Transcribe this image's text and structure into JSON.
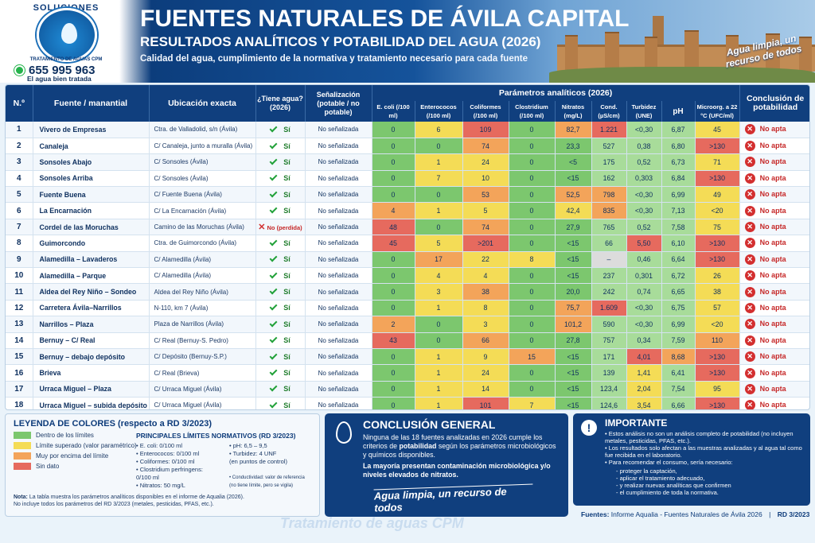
{
  "brand": {
    "logo_top": "SOLUCIONES",
    "logo_bottom": "TRATAMIENTO DE AGUAS CPM",
    "phone": "655 995 963",
    "tagline": "El agua bien tratada"
  },
  "header": {
    "title": "FUENTES NATURALES DE ÁVILA CAPITAL",
    "subtitle": "RESULTADOS ANALÍTICOS Y POTABILIDAD DEL AGUA (2026)",
    "description": "Calidad del agua, cumplimiento de la normativa y tratamiento necesario para cada fuente",
    "motto": "Agua limpia, un recurso de todos"
  },
  "columns": {
    "num": "N.º",
    "fuente": "Fuente / manantial",
    "ubicacion": "Ubicación exacta",
    "agua": "¿Tiene agua? (2026)",
    "senal": "Señalización (potable / no potable)",
    "params_group": "Parámetros analíticos (2026)",
    "ecoli": "E. coli (/100 ml)",
    "entero": "Enterococos (/100 ml)",
    "coli": "Coliformes (/100 ml)",
    "clost": "Clostridium (/100 ml)",
    "nitra": "Nitratos (mg/L)",
    "cond": "Cond. (µS/cm)",
    "turb": "Turbidez (UNE)",
    "ph": "pH",
    "micro": "Microorg. a 22 °C (UFC/ml)",
    "concl": "Conclusión de potabilidad"
  },
  "rows": [
    {
      "n": "1",
      "name": "Vivero de Empresas",
      "loc": "Ctra. de Valladolid, s/n (Ávila)",
      "agua": "Sí",
      "agua_ok": true,
      "sen": "No señalizada",
      "ecoli": "0",
      "entero": "6",
      "coli": "109",
      "clost": "0",
      "nitra": "82,7",
      "cond": "1.221",
      "turb": "<0,30",
      "ph": "6,87",
      "micro": "45",
      "concl": "No apta"
    },
    {
      "n": "2",
      "name": "Canaleja",
      "loc": "C/ Canaleja, junto a muralla (Ávila)",
      "agua": "Sí",
      "agua_ok": true,
      "sen": "No señalizada",
      "ecoli": "0",
      "entero": "0",
      "coli": "74",
      "clost": "0",
      "nitra": "23,3",
      "cond": "527",
      "turb": "0,38",
      "ph": "6,80",
      "micro": ">130",
      "concl": "No apta"
    },
    {
      "n": "3",
      "name": "Sonsoles Abajo",
      "loc": "C/ Sonsoles (Ávila)",
      "agua": "Sí",
      "agua_ok": true,
      "sen": "No señalizada",
      "ecoli": "0",
      "entero": "1",
      "coli": "24",
      "clost": "0",
      "nitra": "<5",
      "cond": "175",
      "turb": "0,52",
      "ph": "6,73",
      "micro": "71",
      "concl": "No apta"
    },
    {
      "n": "4",
      "name": "Sonsoles Arriba",
      "loc": "C/ Sonsoles (Ávila)",
      "agua": "Sí",
      "agua_ok": true,
      "sen": "No señalizada",
      "ecoli": "0",
      "entero": "7",
      "coli": "10",
      "clost": "0",
      "nitra": "<15",
      "cond": "162",
      "turb": "0,303",
      "ph": "6,84",
      "micro": ">130",
      "concl": "No apta"
    },
    {
      "n": "5",
      "name": "Fuente Buena",
      "loc": "C/ Fuente Buena (Ávila)",
      "agua": "Sí",
      "agua_ok": true,
      "sen": "No señalizada",
      "ecoli": "0",
      "entero": "0",
      "coli": "53",
      "clost": "0",
      "nitra": "52,5",
      "cond": "798",
      "turb": "<0,30",
      "ph": "6,99",
      "micro": "49",
      "concl": "No apta"
    },
    {
      "n": "6",
      "name": "La Encarnación",
      "loc": "C/ La Encarnación (Ávila)",
      "agua": "Sí",
      "agua_ok": true,
      "sen": "No señalizada",
      "ecoli": "4",
      "entero": "1",
      "coli": "5",
      "clost": "0",
      "nitra": "42,4",
      "cond": "835",
      "turb": "<0,30",
      "ph": "7,13",
      "micro": "<20",
      "concl": "No apta"
    },
    {
      "n": "7",
      "name": "Cordel de las Moruchas",
      "loc": "Camino de las Moruchas (Ávila)",
      "agua": "No (perdida)",
      "agua_ok": false,
      "sen": "No señalizada",
      "ecoli": "48",
      "entero": "0",
      "coli": "74",
      "clost": "0",
      "nitra": "27,9",
      "cond": "765",
      "turb": "0,52",
      "ph": "7,58",
      "micro": "75",
      "concl": "No apta"
    },
    {
      "n": "8",
      "name": "Guimorcondo",
      "loc": "Ctra. de Guimorcondo (Ávila)",
      "agua": "Sí",
      "agua_ok": true,
      "sen": "No señalizada",
      "ecoli": "45",
      "entero": "5",
      "coli": ">201",
      "clost": "0",
      "nitra": "<15",
      "cond": "66",
      "turb": "5,50",
      "ph": "6,10",
      "micro": ">130",
      "concl": "No apta"
    },
    {
      "n": "9",
      "name": "Alamedilla – Lavaderos",
      "loc": "C/ Alamedilla (Ávila)",
      "agua": "Sí",
      "agua_ok": true,
      "sen": "No señalizada",
      "ecoli": "0",
      "entero": "17",
      "coli": "22",
      "clost": "8",
      "nitra": "<15",
      "cond": "–",
      "turb": "0,46",
      "ph": "6,64",
      "micro": ">130",
      "concl": "No apta"
    },
    {
      "n": "10",
      "name": "Alamedilla – Parque",
      "loc": "C/ Alamedilla (Ávila)",
      "agua": "Sí",
      "agua_ok": true,
      "sen": "No señalizada",
      "ecoli": "0",
      "entero": "4",
      "coli": "4",
      "clost": "0",
      "nitra": "<15",
      "cond": "237",
      "turb": "0,301",
      "ph": "6,72",
      "micro": "26",
      "concl": "No apta"
    },
    {
      "n": "11",
      "name": "Aldea del Rey Niño – Sondeo",
      "loc": "Aldea del Rey Niño (Ávila)",
      "agua": "Sí",
      "agua_ok": true,
      "sen": "No señalizada",
      "ecoli": "0",
      "entero": "3",
      "coli": "38",
      "clost": "0",
      "nitra": "20,0",
      "cond": "242",
      "turb": "0,74",
      "ph": "6,65",
      "micro": "38",
      "concl": "No apta"
    },
    {
      "n": "12",
      "name": "Carretera Ávila–Narrillos",
      "loc": "N-110, km 7 (Ávila)",
      "agua": "Sí",
      "agua_ok": true,
      "sen": "No señalizada",
      "ecoli": "0",
      "entero": "1",
      "coli": "8",
      "clost": "0",
      "nitra": "75,7",
      "cond": "1.609",
      "turb": "<0,30",
      "ph": "6,75",
      "micro": "57",
      "concl": "No apta"
    },
    {
      "n": "13",
      "name": "Narrillos – Plaza",
      "loc": "Plaza de Narrillos (Ávila)",
      "agua": "Sí",
      "agua_ok": true,
      "sen": "No señalizada",
      "ecoli": "2",
      "entero": "0",
      "coli": "3",
      "clost": "0",
      "nitra": "101,2",
      "cond": "590",
      "turb": "<0,30",
      "ph": "6,99",
      "micro": "<20",
      "concl": "No apta"
    },
    {
      "n": "14",
      "name": "Bernuy – C/ Real",
      "loc": "C/ Real (Bernuy-S. Pedro)",
      "agua": "Sí",
      "agua_ok": true,
      "sen": "No señalizada",
      "ecoli": "43",
      "entero": "0",
      "coli": "66",
      "clost": "0",
      "nitra": "27,8",
      "cond": "757",
      "turb": "0,34",
      "ph": "7,59",
      "micro": "110",
      "concl": "No apta"
    },
    {
      "n": "15",
      "name": "Bernuy – debajo depósito",
      "loc": "C/ Depósito (Bernuy-S.P.)",
      "agua": "Sí",
      "agua_ok": true,
      "sen": "No señalizada",
      "ecoli": "0",
      "entero": "1",
      "coli": "9",
      "clost": "15",
      "nitra": "<15",
      "cond": "171",
      "turb": "4,01",
      "ph": "8,68",
      "micro": ">130",
      "concl": "No apta"
    },
    {
      "n": "16",
      "name": "Brieva",
      "loc": "C/ Real (Brieva)",
      "agua": "Sí",
      "agua_ok": true,
      "sen": "No señalizada",
      "ecoli": "0",
      "entero": "1",
      "coli": "24",
      "clost": "0",
      "nitra": "<15",
      "cond": "139",
      "turb": "1,41",
      "ph": "6,41",
      "micro": ">130",
      "concl": "No apta"
    },
    {
      "n": "17",
      "name": "Urraca Miguel – Plaza",
      "loc": "C/ Urraca Miguel (Ávila)",
      "agua": "Sí",
      "agua_ok": true,
      "sen": "No señalizada",
      "ecoli": "0",
      "entero": "1",
      "coli": "14",
      "clost": "0",
      "nitra": "<15",
      "cond": "123,4",
      "turb": "2,04",
      "ph": "7,54",
      "micro": "95",
      "concl": "No apta"
    },
    {
      "n": "18",
      "name": "Urraca Miguel – subida depósito",
      "loc": "C/ Urraca Miguel (Ávila)",
      "agua": "Sí",
      "agua_ok": true,
      "sen": "No señalizada",
      "ecoli": "0",
      "entero": "1",
      "coli": "101",
      "clost": "7",
      "nitra": "<15",
      "cond": "124,6",
      "turb": "3,54",
      "ph": "6,66",
      "micro": ">130",
      "concl": "No apta"
    }
  ],
  "cell_colors": {
    "green": "#7cc76e",
    "yellow": "#f4dc56",
    "orange": "#f3a45a",
    "red": "#e66a5e",
    "lightgreen": "#a8dc9a",
    "gray": "#dcdcdc"
  },
  "legend": {
    "title": "LEYENDA DE COLORES (respecto a RD 3/2023)",
    "items": [
      {
        "label": "Dentro de los límites",
        "color": "#7cc76e"
      },
      {
        "label": "Límite superado (valor paramétrico)",
        "color": "#f4dc56"
      },
      {
        "label": "Muy por encima del límite",
        "color": "#f3a45a"
      },
      {
        "label": "Sin dato",
        "color": "#e66a5e"
      }
    ],
    "limits_title": "PRINCIPALES LÍMITES NORMATIVOS (RD 3/2023)",
    "limits_left": [
      "• E. coli: 0/100 ml",
      "• Enterococos: 0/100 ml",
      "• Coliformes: 0/100 ml",
      "• Clostridium perfringens:",
      "   0/100 ml",
      "• Nitratos: 50 mg/L"
    ],
    "limits_right": [
      "• pH: 6,5 – 9,5",
      "• Turbidez: 4 UNF",
      "  (en puntos de control)",
      "",
      "• Conductividad: valor de referencia",
      "  (no tiene límite, pero se vigila)"
    ],
    "note_label": "Nota:",
    "note": "La tabla muestra los parámetros analíticos disponibles en el informe de Aqualia (2026).",
    "note2": "No incluye todos los parámetros del RD 3/2023 (metales, pesticidas, PFAS, etc.)."
  },
  "conclusion": {
    "title": "CONCLUSIÓN GENERAL",
    "p1a": "Ninguna de las 18 fuentes analizadas en 2026 cumple los criterios de ",
    "p1b": "potabilidad",
    "p1c": " según los parámetros microbiológicos y químicos disponibles.",
    "p2a": "La mayoría presentan ",
    "p2b": "contaminación microbiológica",
    "p2c": " y/o niveles elevados de nitratos.",
    "motto": "Agua limpia, un recurso de todos"
  },
  "important": {
    "title": "IMPORTANTE",
    "items": [
      "Estos análisis no son un análisis completo de potabilidad (no incluyen metales, pesticidas, PFAS, etc.).",
      "Los resultados solo afectan a las muestras analizadas y al agua tal como fue recibida en el laboratorio.",
      "Para recomendar el consumo, sería necesario:"
    ],
    "sub": [
      "proteger la captación,",
      "aplicar el tratamiento adecuado,",
      "y realizar nuevas analíticas que confirmen",
      "el cumplimiento de toda la normativa."
    ]
  },
  "sources": {
    "label": "Fuentes:",
    "text": "Informe Aqualia - Fuentes Naturales de Ávila 2026",
    "sep": "|",
    "rd": "RD 3/2023"
  },
  "watermark": "Tratamiento de aguas CPM"
}
